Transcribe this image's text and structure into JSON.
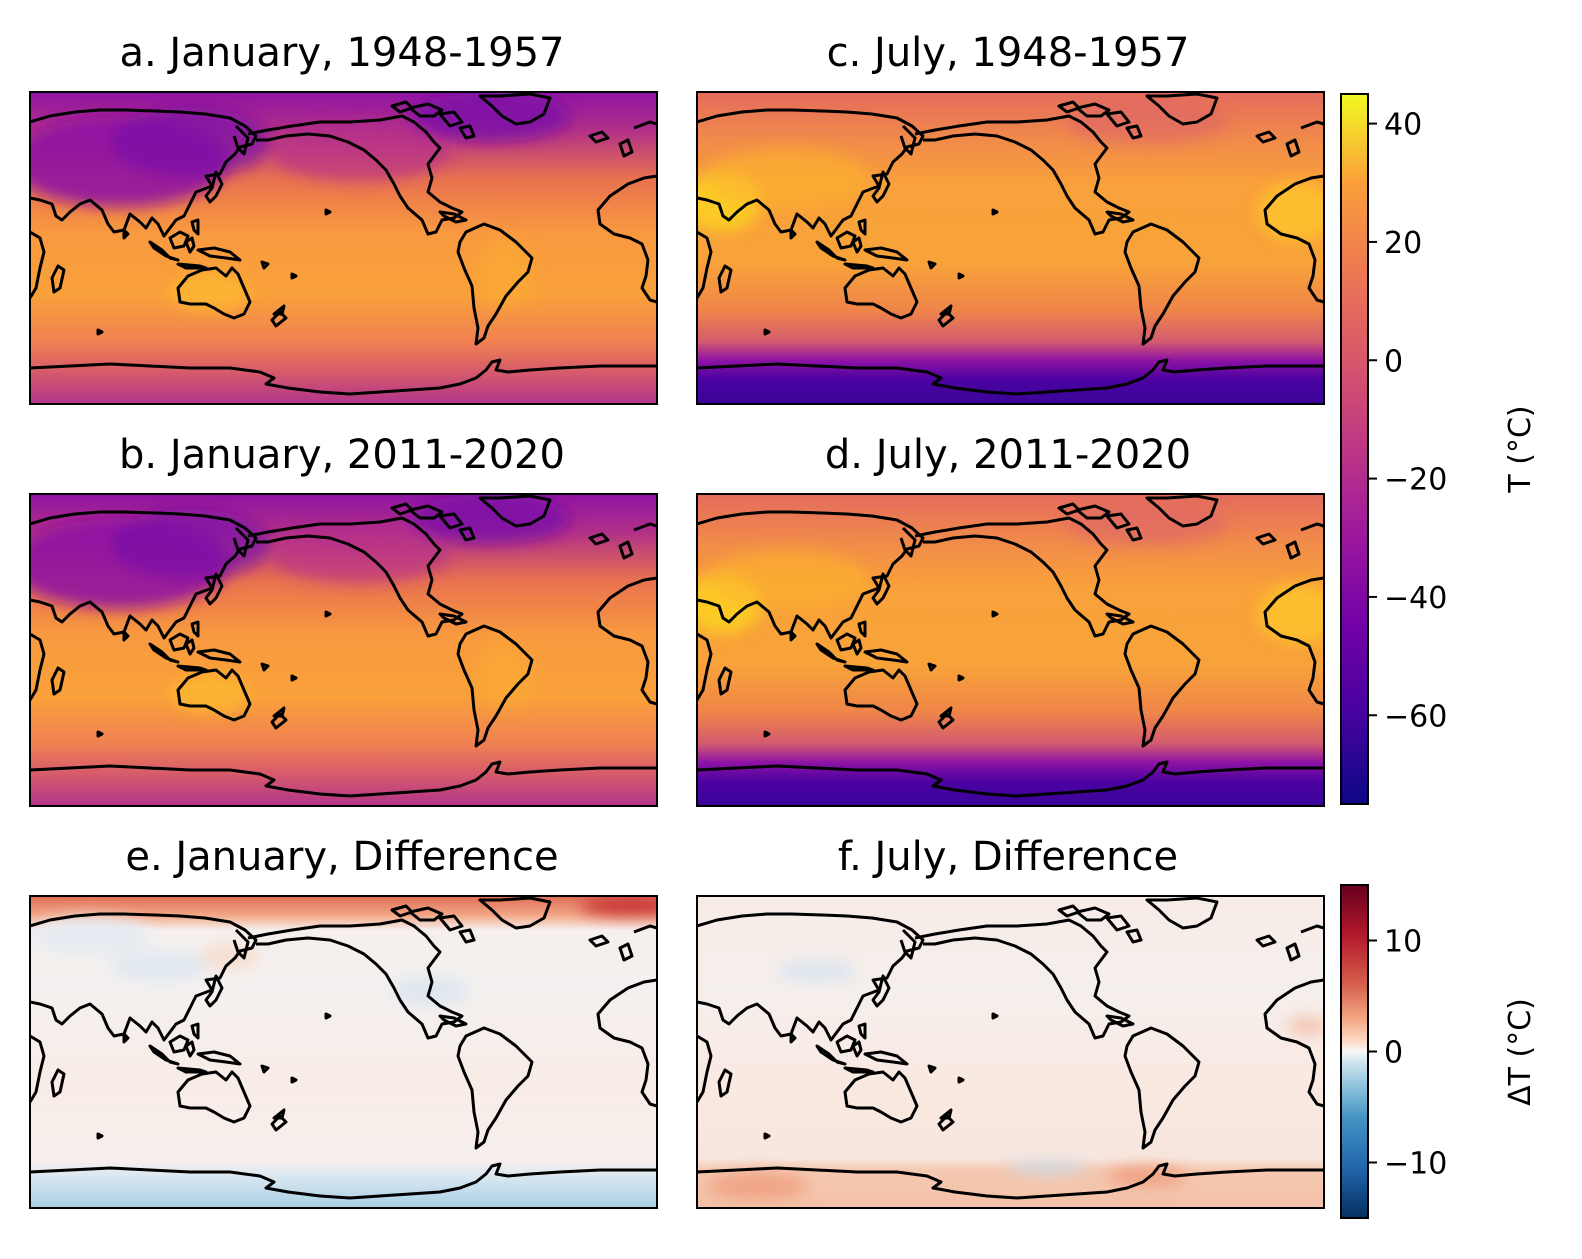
{
  "chart_data": [
    {
      "type": "heatmap",
      "panel": "a",
      "title": "a. January, 1948-1957",
      "variable": "T (°C)",
      "colormap": "plasma",
      "clim": [
        -75,
        45
      ],
      "summary": {
        "tropics": 26,
        "north_polar_land": -35,
        "siberia": -30,
        "antarctic": -20,
        "australia": 30
      }
    },
    {
      "type": "heatmap",
      "panel": "b",
      "title": "b. January, 2011-2020",
      "variable": "T (°C)",
      "colormap": "plasma",
      "clim": [
        -75,
        45
      ],
      "summary": {
        "tropics": 27,
        "north_polar_land": -30,
        "siberia": -30,
        "antarctic": -25,
        "australia": 31
      }
    },
    {
      "type": "heatmap",
      "panel": "c",
      "title": "c. July, 1948-1957",
      "variable": "T (°C)",
      "colormap": "plasma",
      "clim": [
        -75,
        45
      ],
      "summary": {
        "tropics": 27,
        "north_polar_land": 5,
        "siberia": 18,
        "antarctic": -60,
        "sahara_arabia": 38
      }
    },
    {
      "type": "heatmap",
      "panel": "d",
      "title": "d. July, 2011-2020",
      "variable": "T (°C)",
      "colormap": "plasma",
      "clim": [
        -75,
        45
      ],
      "summary": {
        "tropics": 28,
        "north_polar_land": 6,
        "siberia": 19,
        "antarctic": -60,
        "sahara_arabia": 39
      }
    },
    {
      "type": "heatmap",
      "panel": "e",
      "title": "e. January, Difference",
      "variable": "ΔT (°C)",
      "colormap": "RdBu_r",
      "clim": [
        -15,
        15
      ],
      "summary": {
        "arctic": 9,
        "siberia": -2,
        "tropics": 1,
        "antarctic": -5
      }
    },
    {
      "type": "heatmap",
      "panel": "f",
      "title": "f. July, Difference",
      "variable": "ΔT (°C)",
      "colormap": "RdBu_r",
      "clim": [
        -15,
        15
      ],
      "summary": {
        "arctic": 1,
        "tropics": 1,
        "antarctic": 5,
        "antarctic_weddell": -3
      }
    }
  ],
  "colorbars": [
    {
      "label": "T ($^\\circ$C)",
      "label_display": "T (°C)",
      "ticks": [
        40,
        20,
        0,
        -20,
        -40,
        -60
      ],
      "tick_labels": [
        "40",
        "20",
        "0",
        "−20",
        "−40",
        "−60"
      ],
      "range": [
        -75,
        45
      ],
      "colormap": "plasma"
    },
    {
      "label": "ΔT ($^\\circ$C)",
      "label_display": "ΔT (°C)",
      "ticks": [
        10,
        0,
        -10
      ],
      "tick_labels": [
        "10",
        "0",
        "−10"
      ],
      "range": [
        -15,
        15
      ],
      "colormap": "RdBu_r"
    }
  ],
  "colors": {
    "coastline": "#000000",
    "frame": "#000000"
  }
}
